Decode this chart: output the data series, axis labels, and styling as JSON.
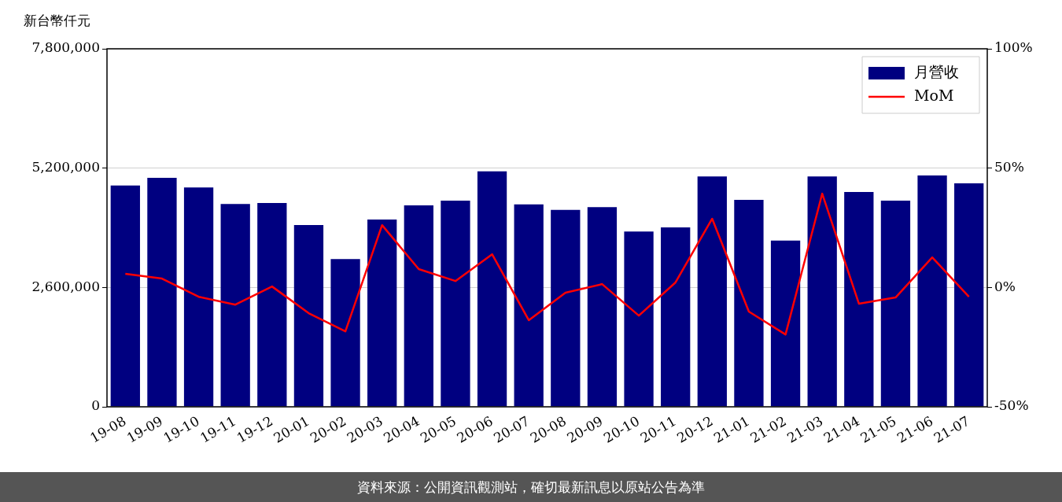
{
  "chart_data": {
    "type": "bar",
    "ylabel": "新台幣仟元",
    "categories": [
      "19-08",
      "19-09",
      "19-10",
      "19-11",
      "19-12",
      "20-01",
      "20-02",
      "20-03",
      "20-04",
      "20-05",
      "20-06",
      "20-07",
      "20-08",
      "20-09",
      "20-10",
      "20-11",
      "20-12",
      "21-01",
      "21-02",
      "21-03",
      "21-04",
      "21-05",
      "21-06",
      "21-07"
    ],
    "series": [
      {
        "name": "月營收",
        "color": "#000080",
        "values": [
          4820000,
          4990000,
          4780000,
          4420000,
          4440000,
          3960000,
          3220000,
          4080000,
          4390000,
          4490000,
          5130000,
          4410000,
          4290000,
          4350000,
          3820000,
          3910000,
          5020000,
          4510000,
          3620000,
          5020000,
          4680000,
          4490000,
          5040000,
          4870000
        ]
      },
      {
        "name": "MoM",
        "type": "line",
        "axis": "y2",
        "color": "#ff0000",
        "values": [
          5.7,
          3.7,
          -3.9,
          -7.2,
          0.4,
          -10.8,
          -18.4,
          26.1,
          7.7,
          2.7,
          13.9,
          -13.7,
          -2.2,
          1.4,
          -11.8,
          2.1,
          28.8,
          -10.1,
          -19.7,
          39.3,
          -6.8,
          -4.2,
          12.6,
          -3.9
        ]
      }
    ],
    "ylim": [
      0,
      7800000
    ],
    "yticks": [
      {
        "value": 0,
        "label": "0"
      },
      {
        "value": 2600000,
        "label": "2,600,000"
      },
      {
        "value": 5200000,
        "label": "5,200,000"
      },
      {
        "value": 7800000,
        "label": "7,800,000"
      }
    ],
    "y2lim": [
      -50,
      100
    ],
    "y2ticks": [
      {
        "value": -50,
        "label": "-50%"
      },
      {
        "value": 0,
        "label": "0%"
      },
      {
        "value": 50,
        "label": "50%"
      },
      {
        "value": 100,
        "label": "100%"
      }
    ],
    "grid": "y",
    "legend": "top right",
    "marker": "none",
    "line_style": "solid",
    "annotations": [
      "資料來源：公開資訊觀測站，確切最新訊息以原站公告為準"
    ]
  }
}
